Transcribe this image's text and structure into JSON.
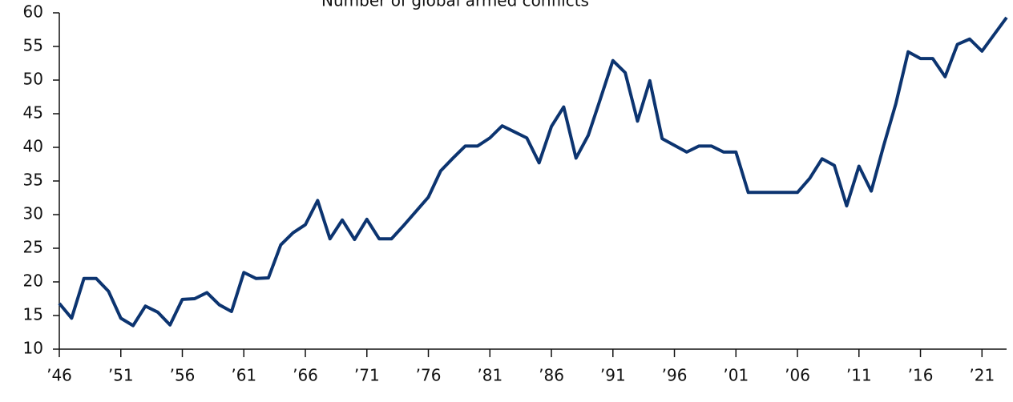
{
  "chart_data": {
    "type": "line",
    "title": "Number of global armed conflicts",
    "x": [
      1946,
      1947,
      1948,
      1949,
      1950,
      1951,
      1952,
      1953,
      1954,
      1955,
      1956,
      1957,
      1958,
      1959,
      1960,
      1961,
      1962,
      1963,
      1964,
      1965,
      1966,
      1967,
      1968,
      1969,
      1970,
      1971,
      1972,
      1973,
      1974,
      1975,
      1976,
      1977,
      1978,
      1979,
      1980,
      1981,
      1982,
      1983,
      1984,
      1985,
      1986,
      1987,
      1988,
      1989,
      1990,
      1991,
      1992,
      1993,
      1994,
      1995,
      1996,
      1997,
      1998,
      1999,
      2000,
      2001,
      2002,
      2003,
      2004,
      2005,
      2006,
      2007,
      2008,
      2009,
      2010,
      2011,
      2012,
      2013,
      2014,
      2015,
      2016,
      2017,
      2018,
      2019,
      2020,
      2021,
      2022,
      2023
    ],
    "series": [
      {
        "name": "Number of global armed conflicts",
        "color": "#0c3470",
        "values": [
          16.8,
          14.6,
          20.5,
          20.5,
          18.6,
          14.6,
          13.5,
          16.4,
          15.5,
          13.6,
          17.4,
          17.5,
          18.4,
          16.6,
          15.6,
          21.4,
          20.5,
          20.6,
          25.5,
          27.3,
          28.5,
          32.1,
          26.4,
          29.2,
          26.3,
          29.3,
          26.4,
          26.4,
          28.4,
          30.5,
          32.6,
          36.5,
          38.4,
          40.2,
          40.2,
          41.4,
          43.2,
          42.3,
          41.4,
          37.7,
          43.1,
          46.0,
          38.4,
          41.8,
          47.3,
          52.9,
          51.1,
          43.9,
          49.9,
          41.3,
          40.3,
          39.3,
          40.2,
          40.2,
          39.3,
          39.3,
          33.3,
          33.3,
          33.3,
          33.3,
          33.3,
          35.4,
          38.3,
          37.3,
          31.3,
          37.2,
          33.5,
          40.2,
          46.5,
          54.2,
          53.2,
          53.2,
          50.5,
          55.3,
          56.1,
          54.3,
          56.8,
          59.3
        ]
      }
    ],
    "xlim": [
      1946,
      2023
    ],
    "xticks": [
      {
        "value": 1946,
        "label": "’46"
      },
      {
        "value": 1951,
        "label": "’51"
      },
      {
        "value": 1956,
        "label": "’56"
      },
      {
        "value": 1961,
        "label": "’61"
      },
      {
        "value": 1966,
        "label": "’66"
      },
      {
        "value": 1971,
        "label": "’71"
      },
      {
        "value": 1976,
        "label": "’76"
      },
      {
        "value": 1981,
        "label": "’81"
      },
      {
        "value": 1986,
        "label": "’86"
      },
      {
        "value": 1991,
        "label": "’91"
      },
      {
        "value": 1996,
        "label": "’96"
      },
      {
        "value": 2001,
        "label": "’01"
      },
      {
        "value": 2006,
        "label": "’06"
      },
      {
        "value": 2011,
        "label": "’11"
      },
      {
        "value": 2016,
        "label": "’16"
      },
      {
        "value": 2021,
        "label": "’21"
      }
    ],
    "ylim": [
      10,
      60
    ],
    "yticks": [
      10,
      15,
      20,
      25,
      30,
      35,
      40,
      45,
      50,
      55,
      60
    ]
  }
}
